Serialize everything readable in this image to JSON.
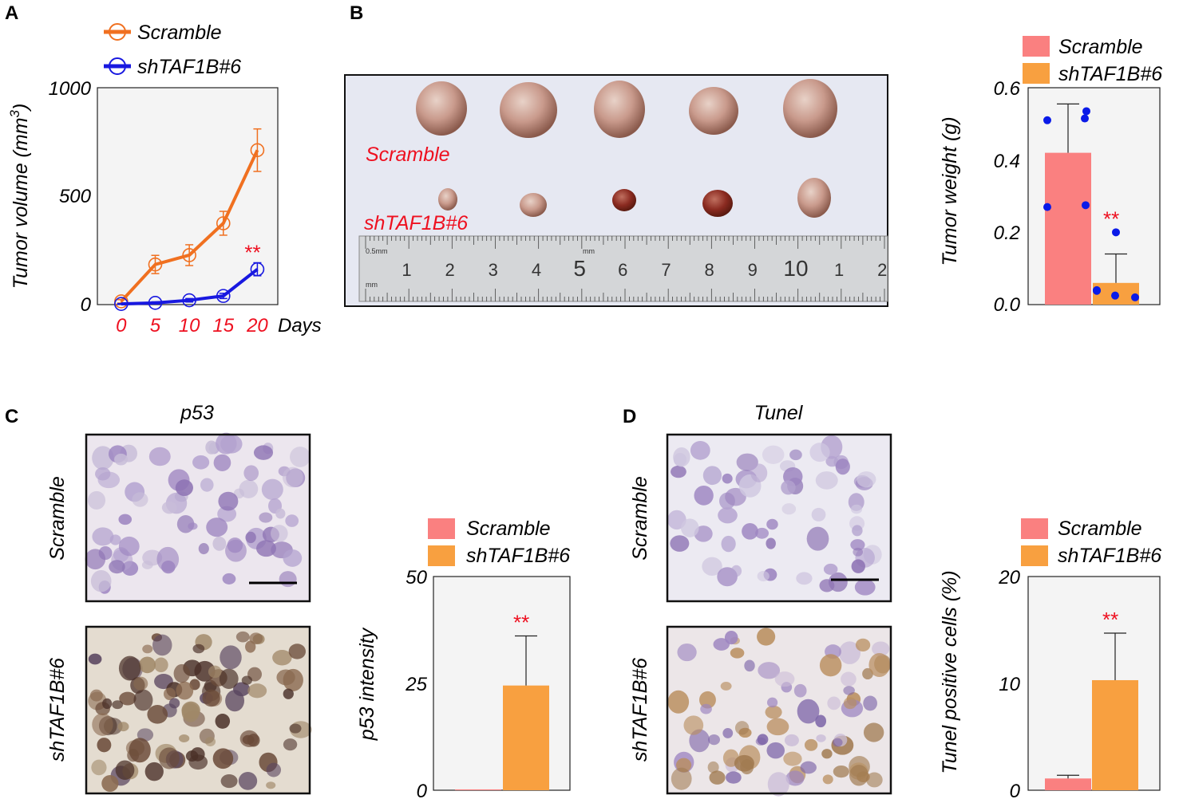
{
  "colors": {
    "scramble_line": "#f07020",
    "sh_line": "#1818e0",
    "scramble_bar": "#fa8080",
    "sh_bar": "#f8a040",
    "dots": "#0a1ae8",
    "signif": "#ee1020",
    "plot_bg": "#f4f4f4",
    "photo_bg": "#e6e8f2",
    "ruler": "#d4d6d8",
    "he_cell": "#9c84c0",
    "brown_cell": "#6a4a38"
  },
  "panels": {
    "A": "A",
    "B": "B",
    "C": "C",
    "D": "D"
  },
  "photo_b": {
    "scramble_label": "Scramble",
    "sh_label": "shTAF1B#6",
    "ruler_unit_top": "0.5mm",
    "ruler_unit_mid": "mm",
    "ruler_unit_bottom": "mm",
    "ruler_numbers": [
      "1",
      "2",
      "3",
      "4",
      "5",
      "6",
      "7",
      "8",
      "9",
      "10",
      "1",
      "2"
    ]
  },
  "panel_c": {
    "title": "p53",
    "row_scramble": "Scramble",
    "row_sh": "shTAF1B#6"
  },
  "panel_d": {
    "title": "Tunel",
    "row_scramble": "Scramble",
    "row_sh": "shTAF1B#6"
  },
  "chart_data": [
    {
      "id": "A",
      "type": "line",
      "title": "",
      "xlabel": "Days",
      "ylabel": "Tumor volume (mm",
      "ylabel_sup": "3",
      "ylabel_close": ")",
      "x": [
        0,
        5,
        10,
        15,
        20
      ],
      "xlim": [
        -3.5,
        23
      ],
      "ylim": [
        0,
        1000
      ],
      "yticks": [
        0,
        500,
        1000
      ],
      "grid": false,
      "legend": "top-left",
      "series": [
        {
          "name": "Scramble",
          "color": "#f07020",
          "values": [
            15,
            185,
            228,
            375,
            712
          ],
          "err": [
            8,
            42,
            48,
            55,
            98
          ]
        },
        {
          "name": "shTAF1B#6",
          "color": "#1818e0",
          "values": [
            3,
            8,
            20,
            40,
            163
          ],
          "err": [
            2,
            5,
            8,
            12,
            30
          ]
        }
      ],
      "annotation": "**"
    },
    {
      "id": "B",
      "type": "bar",
      "title": "",
      "ylabel": "Tumor weight (g)",
      "ylim": [
        0,
        0.6
      ],
      "yticks": [
        "0.0",
        "0.2",
        "0.4",
        "0.6"
      ],
      "ytick_values": [
        0,
        0.2,
        0.4,
        0.6
      ],
      "legend": "top",
      "series": [
        {
          "name": "Scramble",
          "value": 0.42,
          "err": 0.135,
          "color": "#fa8080",
          "points": [
            0.51,
            0.535,
            0.515,
            0.27,
            0.275
          ]
        },
        {
          "name": "shTAF1B#6",
          "value": 0.06,
          "err": 0.08,
          "color": "#f8a040",
          "points": [
            0.2,
            0.04,
            0.038,
            0.02,
            0.025
          ]
        }
      ],
      "annotation": "**"
    },
    {
      "id": "C",
      "type": "bar",
      "title": "",
      "ylabel": "p53 intensity",
      "ylim": [
        0,
        50
      ],
      "yticks": [
        "0",
        "25",
        "50"
      ],
      "ytick_values": [
        0,
        25,
        50
      ],
      "legend": "top",
      "series": [
        {
          "name": "Scramble",
          "value": 0.2,
          "err": 0,
          "color": "#fa8080"
        },
        {
          "name": "shTAF1B#6",
          "value": 24.5,
          "err": 11.6,
          "color": "#f8a040"
        }
      ],
      "annotation": "**"
    },
    {
      "id": "D",
      "type": "bar",
      "title": "",
      "ylabel": "Tunel positive cells (%)",
      "ylim": [
        0,
        20
      ],
      "yticks": [
        "0",
        "10",
        "20"
      ],
      "ytick_values": [
        0,
        10,
        20
      ],
      "legend": "top",
      "series": [
        {
          "name": "Scramble",
          "value": 1.1,
          "err": 0.3,
          "color": "#fa8080"
        },
        {
          "name": "shTAF1B#6",
          "value": 10.3,
          "err": 4.4,
          "color": "#f8a040"
        }
      ],
      "annotation": "**"
    }
  ]
}
